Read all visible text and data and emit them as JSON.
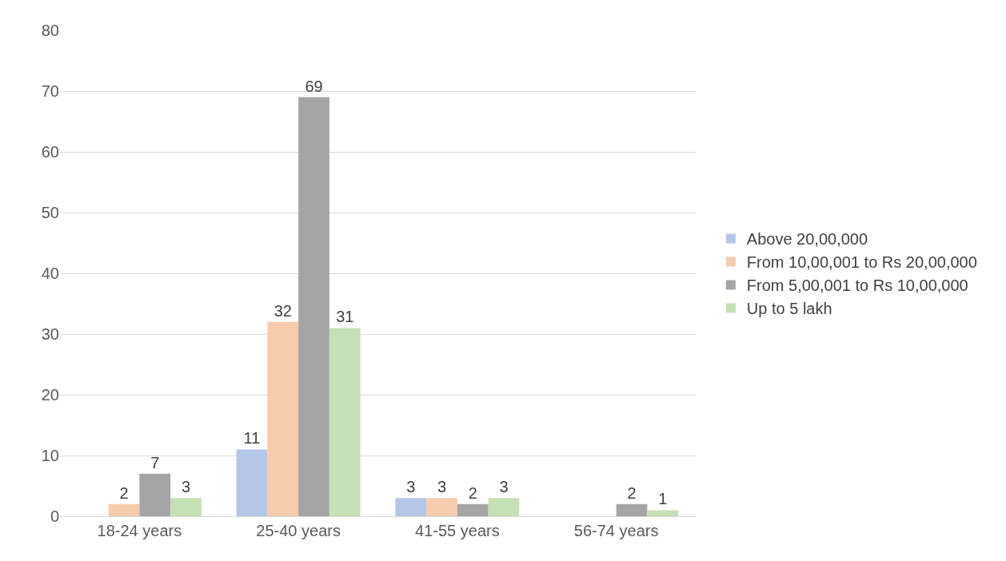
{
  "chart_data": {
    "type": "bar",
    "categories": [
      "18-24 years",
      "25-40 years",
      "41-55 years",
      "56-74 years"
    ],
    "series": [
      {
        "name": "Above 20,00,000",
        "color": "#b4c7e7",
        "values": [
          null,
          11,
          3,
          null
        ]
      },
      {
        "name": "From 10,00,001 to Rs 20,00,000",
        "color": "#f8cbad",
        "values": [
          2,
          32,
          3,
          null
        ]
      },
      {
        "name": "From 5,00,001 to Rs 10,00,000",
        "color": "#a5a5a5",
        "values": [
          7,
          69,
          2,
          2
        ]
      },
      {
        "name": "Up to 5 lakh",
        "color": "#c5e0b4",
        "values": [
          3,
          31,
          3,
          1
        ]
      }
    ],
    "ylim": [
      0,
      80
    ],
    "yticks": [
      0,
      10,
      20,
      30,
      40,
      50,
      60,
      70,
      80
    ],
    "grid": "y",
    "legend": "right",
    "data_labels": true
  }
}
